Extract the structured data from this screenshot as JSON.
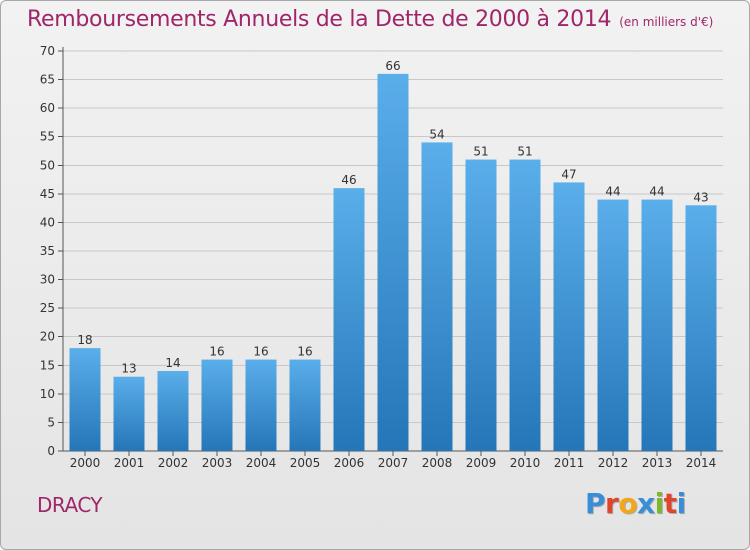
{
  "header": {
    "title": "Remboursements Annuels de la Dette de 2000 à 2014",
    "subtitle": "(en milliers d'€)"
  },
  "footer": {
    "city": "DRACY",
    "logo_text": "Proxiti",
    "logo_colors": [
      "#3a8ed8",
      "#e0452b",
      "#f2a71b",
      "#3a8ed8",
      "#7cb82f",
      "#e0452b",
      "#3a8ed8"
    ]
  },
  "chart_data": {
    "type": "bar",
    "categories": [
      "2000",
      "2001",
      "2002",
      "2003",
      "2004",
      "2005",
      "2006",
      "2007",
      "2008",
      "2009",
      "2010",
      "2011",
      "2012",
      "2013",
      "2014"
    ],
    "values": [
      18,
      13,
      14,
      16,
      16,
      16,
      46,
      66,
      54,
      51,
      51,
      47,
      44,
      44,
      43
    ],
    "title": "Remboursements Annuels de la Dette de 2000 à 2014",
    "subtitle": "(en milliers d'€)",
    "ylim": [
      0,
      70
    ],
    "yticks": [
      0,
      5,
      10,
      15,
      20,
      25,
      30,
      35,
      40,
      45,
      50,
      55,
      60,
      65,
      70
    ],
    "grid": true,
    "bar_color_top": "#5aaeea",
    "bar_color_bottom": "#2576b8"
  }
}
